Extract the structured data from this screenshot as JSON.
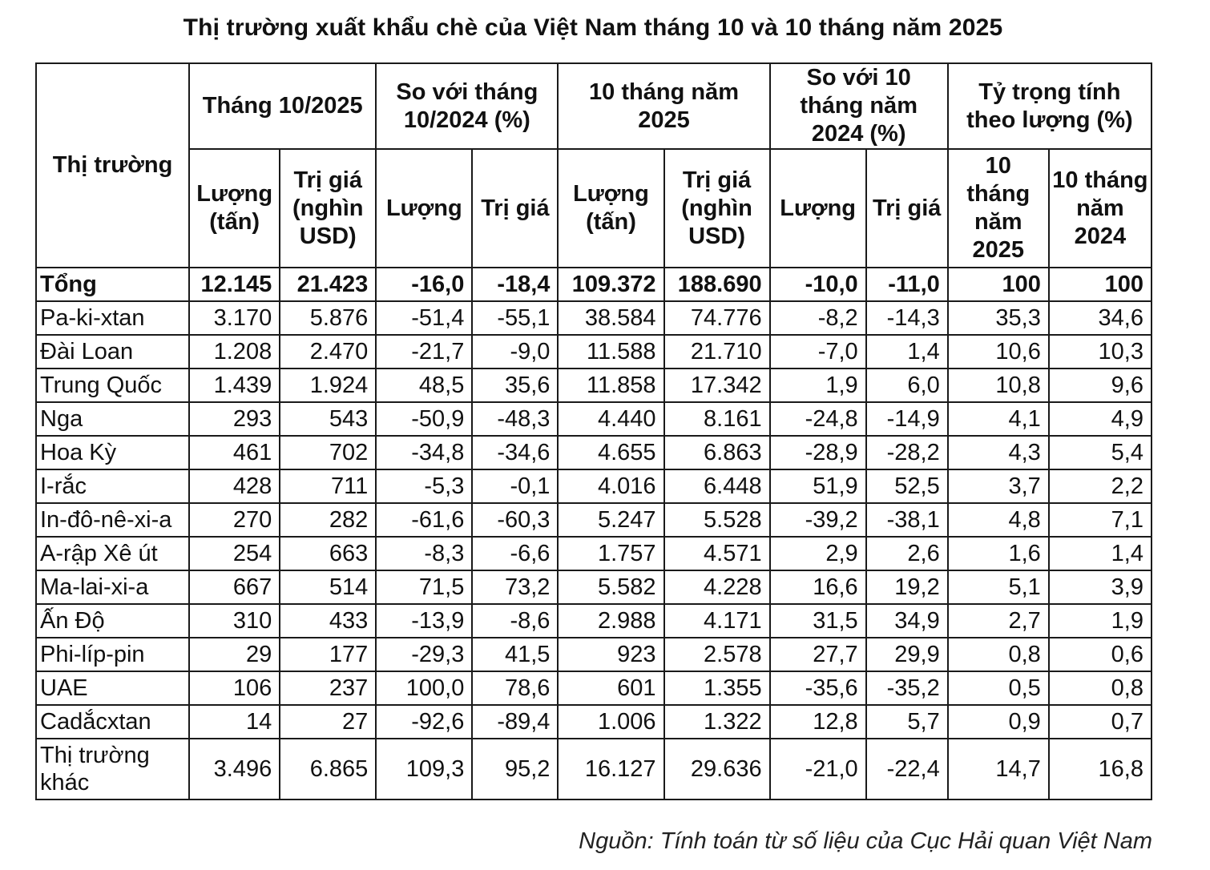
{
  "title": "Thị trường xuất khẩu chè của Việt Nam tháng 10 và 10 tháng năm 2025",
  "headers": {
    "market": "Thị trường",
    "group1": "Tháng 10/2025",
    "group2": "So với tháng 10/2024 (%)",
    "group3": "10 tháng năm 2025",
    "group4": "So với 10 tháng năm 2024 (%)",
    "group5": "Tỷ trọng tính theo lượng (%)",
    "sub": [
      "Lượng (tấn)",
      "Trị giá (nghìn USD)",
      "Lượng",
      "Trị giá",
      "Lượng (tấn)",
      "Trị giá (nghìn USD)",
      "Lượng",
      "Trị giá",
      "10 tháng năm 2025",
      "10 tháng năm 2024"
    ]
  },
  "rows": [
    {
      "market": "Tổng",
      "v": [
        "12.145",
        "21.423",
        "-16,0",
        "-18,4",
        "109.372",
        "188.690",
        "-10,0",
        "-11,0",
        "100",
        "100"
      ]
    },
    {
      "market": "Pa-ki-xtan",
      "v": [
        "3.170",
        "5.876",
        "-51,4",
        "-55,1",
        "38.584",
        "74.776",
        "-8,2",
        "-14,3",
        "35,3",
        "34,6"
      ]
    },
    {
      "market": "Đài Loan",
      "v": [
        "1.208",
        "2.470",
        "-21,7",
        "-9,0",
        "11.588",
        "21.710",
        "-7,0",
        "1,4",
        "10,6",
        "10,3"
      ]
    },
    {
      "market": "Trung Quốc",
      "v": [
        "1.439",
        "1.924",
        "48,5",
        "35,6",
        "11.858",
        "17.342",
        "1,9",
        "6,0",
        "10,8",
        "9,6"
      ]
    },
    {
      "market": "Nga",
      "v": [
        "293",
        "543",
        "-50,9",
        "-48,3",
        "4.440",
        "8.161",
        "-24,8",
        "-14,9",
        "4,1",
        "4,9"
      ]
    },
    {
      "market": "Hoa Kỳ",
      "v": [
        "461",
        "702",
        "-34,8",
        "-34,6",
        "4.655",
        "6.863",
        "-28,9",
        "-28,2",
        "4,3",
        "5,4"
      ]
    },
    {
      "market": "I-rắc",
      "v": [
        "428",
        "711",
        "-5,3",
        "-0,1",
        "4.016",
        "6.448",
        "51,9",
        "52,5",
        "3,7",
        "2,2"
      ]
    },
    {
      "market": "In-đô-nê-xi-a",
      "v": [
        "270",
        "282",
        "-61,6",
        "-60,3",
        "5.247",
        "5.528",
        "-39,2",
        "-38,1",
        "4,8",
        "7,1"
      ]
    },
    {
      "market": "A-rập Xê út",
      "v": [
        "254",
        "663",
        "-8,3",
        "-6,6",
        "1.757",
        "4.571",
        "2,9",
        "2,6",
        "1,6",
        "1,4"
      ]
    },
    {
      "market": "Ma-lai-xi-a",
      "v": [
        "667",
        "514",
        "71,5",
        "73,2",
        "5.582",
        "4.228",
        "16,6",
        "19,2",
        "5,1",
        "3,9"
      ]
    },
    {
      "market": "Ấn Độ",
      "v": [
        "310",
        "433",
        "-13,9",
        "-8,6",
        "2.988",
        "4.171",
        "31,5",
        "34,9",
        "2,7",
        "1,9"
      ]
    },
    {
      "market": "Phi-líp-pin",
      "v": [
        "29",
        "177",
        "-29,3",
        "41,5",
        "923",
        "2.578",
        "27,7",
        "29,9",
        "0,8",
        "0,6"
      ]
    },
    {
      "market": "UAE",
      "v": [
        "106",
        "237",
        "100,0",
        "78,6",
        "601",
        "1.355",
        "-35,6",
        "-35,2",
        "0,5",
        "0,8"
      ]
    },
    {
      "market": "Cadắcxtan",
      "v": [
        "14",
        "27",
        "-92,6",
        "-89,4",
        "1.006",
        "1.322",
        "12,8",
        "5,7",
        "0,9",
        "0,7"
      ]
    },
    {
      "market": "Thị trường khác",
      "v": [
        "3.496",
        "6.865",
        "109,3",
        "95,2",
        "16.127",
        "29.636",
        "-21,0",
        "-22,4",
        "14,7",
        "16,8"
      ]
    }
  ],
  "source": "Nguồn: Tính toán từ số liệu của Cục Hải quan Việt Nam"
}
